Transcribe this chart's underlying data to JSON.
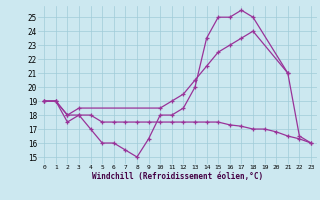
{
  "bg_color": "#cce8f0",
  "line_color": "#993399",
  "xlabel": "Windchill (Refroidissement éolien,°C)",
  "xlim": [
    -0.5,
    23.5
  ],
  "ylim": [
    14.5,
    25.8
  ],
  "xticks": [
    0,
    1,
    2,
    3,
    4,
    5,
    6,
    7,
    8,
    9,
    10,
    11,
    12,
    13,
    14,
    15,
    16,
    17,
    18,
    19,
    20,
    21,
    22,
    23
  ],
  "yticks": [
    15,
    16,
    17,
    18,
    19,
    20,
    21,
    22,
    23,
    24,
    25
  ],
  "s1x": [
    0,
    1,
    2,
    3,
    4,
    5,
    6,
    7,
    8,
    9,
    10,
    11,
    12,
    13,
    14,
    15,
    16,
    17,
    18,
    21
  ],
  "s1y": [
    19.0,
    19.0,
    17.5,
    18.0,
    17.0,
    16.0,
    16.0,
    15.5,
    15.0,
    16.3,
    18.0,
    18.0,
    18.5,
    20.0,
    23.5,
    25.0,
    25.0,
    25.5,
    25.0,
    21.0
  ],
  "s2x": [
    0,
    1,
    2,
    3,
    10,
    11,
    12,
    13,
    14,
    15,
    16,
    17,
    18,
    21,
    22,
    23
  ],
  "s2y": [
    19.0,
    19.0,
    18.0,
    18.5,
    18.5,
    19.0,
    19.5,
    20.5,
    21.5,
    22.5,
    23.0,
    23.5,
    24.0,
    21.0,
    16.5,
    16.0
  ],
  "s3x": [
    0,
    1,
    2,
    3,
    4,
    5,
    6,
    7,
    8,
    9,
    10,
    11,
    12,
    13,
    14,
    15,
    16,
    17,
    18,
    19,
    20,
    21,
    22,
    23
  ],
  "s3y": [
    19.0,
    19.0,
    18.0,
    18.0,
    18.0,
    17.5,
    17.5,
    17.5,
    17.5,
    17.5,
    17.5,
    17.5,
    17.5,
    17.5,
    17.5,
    17.5,
    17.3,
    17.2,
    17.0,
    17.0,
    16.8,
    16.5,
    16.3,
    16.0
  ]
}
